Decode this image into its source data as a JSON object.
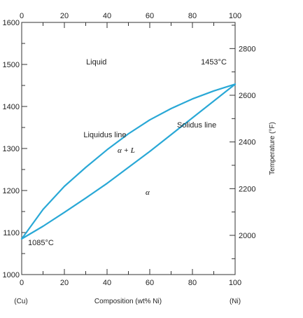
{
  "chart_data": {
    "type": "line",
    "title": "",
    "xlabel": "Composition (wt% Ni)",
    "ylabel_left": "",
    "ylabel_right": "Temperature (°F)",
    "x_end_labels": {
      "left": "(Cu)",
      "right": "(Ni)"
    },
    "xlim": [
      0,
      100
    ],
    "ylim": [
      1000,
      1600
    ],
    "ylim_right_F": [
      1832,
      2912
    ],
    "x_ticks": [
      0,
      20,
      40,
      60,
      80,
      100
    ],
    "y_ticks": [
      1000,
      1100,
      1200,
      1300,
      1400,
      1500,
      1600
    ],
    "y_ticks_right_F": [
      2000,
      2200,
      2400,
      2600,
      2800
    ],
    "grid": false,
    "series": [
      {
        "name": "Liquidus line",
        "x": [
          0,
          10,
          20,
          30,
          40,
          50,
          60,
          70,
          80,
          90,
          100
        ],
        "y": [
          1085,
          1155,
          1210,
          1255,
          1297,
          1335,
          1368,
          1395,
          1418,
          1437,
          1453
        ]
      },
      {
        "name": "Solidus line",
        "x": [
          0,
          10,
          20,
          30,
          40,
          50,
          60,
          70,
          80,
          90,
          100
        ],
        "y": [
          1085,
          1115,
          1148,
          1182,
          1217,
          1255,
          1293,
          1333,
          1373,
          1413,
          1453
        ]
      }
    ],
    "annotations": [
      {
        "text": "Liquid",
        "x": 35,
        "y": 1500
      },
      {
        "text": "1453°C",
        "x": 90,
        "y": 1500
      },
      {
        "text": "Liquidus line",
        "x": 39,
        "y": 1327
      },
      {
        "text": "Solidus line",
        "x": 82,
        "y": 1350
      },
      {
        "text": "α + L",
        "x": 49,
        "y": 1290,
        "italic": true
      },
      {
        "text": "α",
        "x": 59,
        "y": 1190,
        "italic": true
      },
      {
        "text": "1085°C",
        "x": 9,
        "y": 1070
      }
    ],
    "colors": {
      "curve": "#29a8d6",
      "axis": "#333333",
      "text": "#222222"
    }
  }
}
